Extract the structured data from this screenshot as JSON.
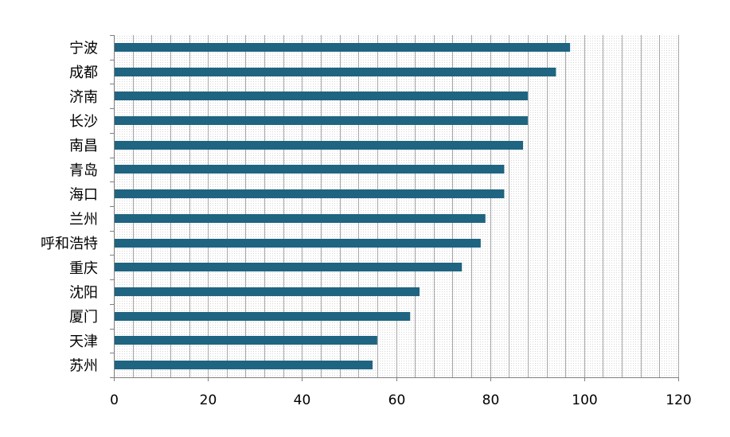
{
  "chart_data": {
    "type": "bar",
    "orientation": "horizontal",
    "categories": [
      "宁波",
      "成都",
      "济南",
      "长沙",
      "南昌",
      "青岛",
      "海口",
      "兰州",
      "呼和浩特",
      "重庆",
      "沈阳",
      "厦门",
      "天津",
      "苏州"
    ],
    "values": [
      97,
      94,
      88,
      88,
      87,
      83,
      83,
      79,
      78,
      74,
      65,
      63,
      56,
      55
    ],
    "xlim": [
      0,
      120
    ],
    "xticks": [
      0,
      20,
      40,
      60,
      80,
      100,
      120
    ],
    "grid": "vertical",
    "bar_color": "#1F6480",
    "grid_color": "#a6a6a6",
    "plot_background": "#f2f2f2",
    "legend": "none"
  }
}
